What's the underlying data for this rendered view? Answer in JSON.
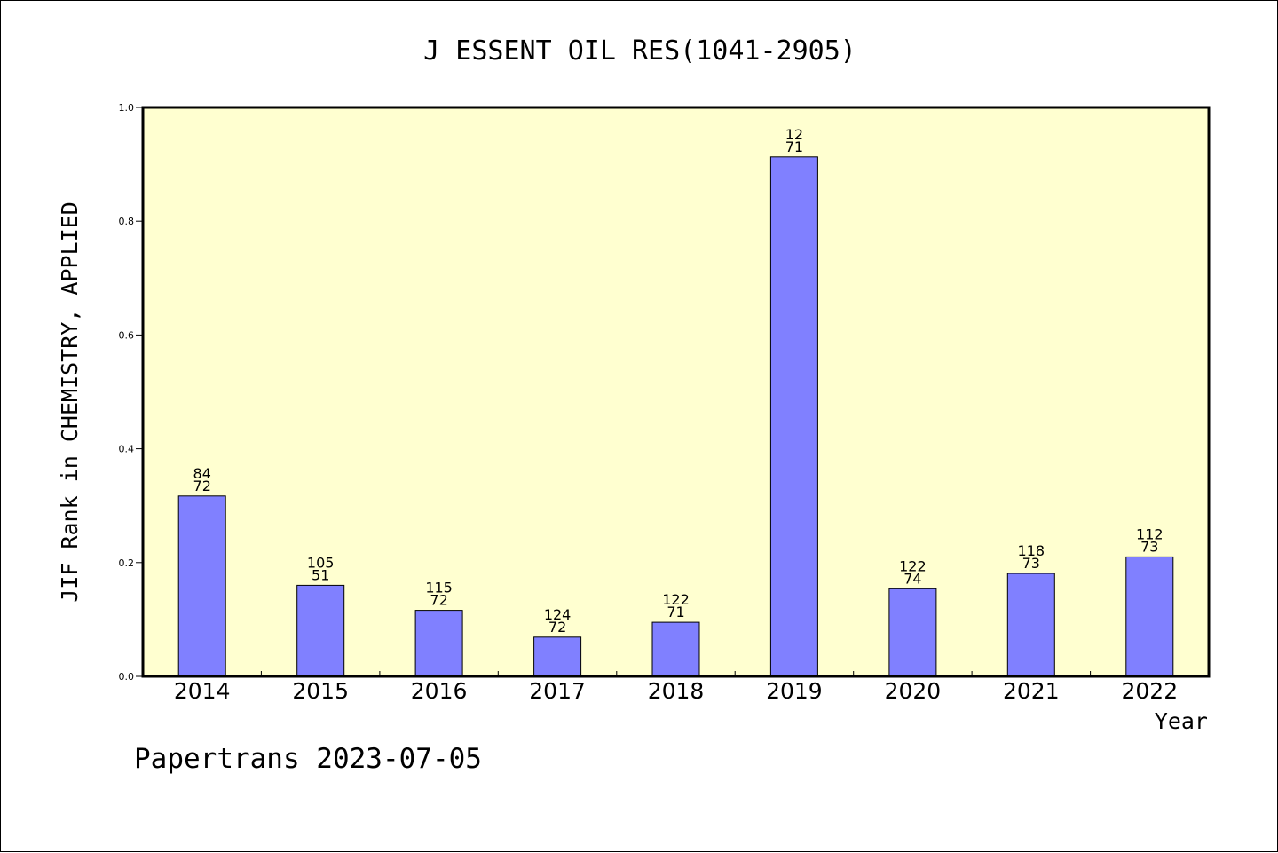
{
  "chart_data": {
    "type": "bar",
    "title": "J ESSENT OIL RES(1041-2905)",
    "xlabel": "Year",
    "ylabel": "JIF Rank in CHEMISTRY, APPLIED",
    "ylim": [
      0,
      1.0
    ],
    "yticks": [
      "0.0",
      "0.2",
      "0.4",
      "0.6",
      "0.8",
      "1.0"
    ],
    "categories": [
      "2014",
      "2015",
      "2016",
      "2017",
      "2018",
      "2019",
      "2020",
      "2021",
      "2022"
    ],
    "values": [
      0.317,
      0.16,
      0.116,
      0.069,
      0.095,
      0.913,
      0.154,
      0.181,
      0.21
    ],
    "bar_labels": [
      [
        "84",
        "72"
      ],
      [
        "105",
        "51"
      ],
      [
        "115",
        "72"
      ],
      [
        "124",
        "72"
      ],
      [
        "122",
        "71"
      ],
      [
        "12",
        "71"
      ],
      [
        "122",
        "74"
      ],
      [
        "118",
        "73"
      ],
      [
        "112",
        "73"
      ]
    ],
    "grid": false,
    "colors": {
      "plot_background": "#ffffd0",
      "bar_fill": "#8080ff",
      "bar_stroke": "#000000",
      "axis": "#000000"
    }
  },
  "footer": {
    "credit": "Papertrans 2023-07-05"
  }
}
